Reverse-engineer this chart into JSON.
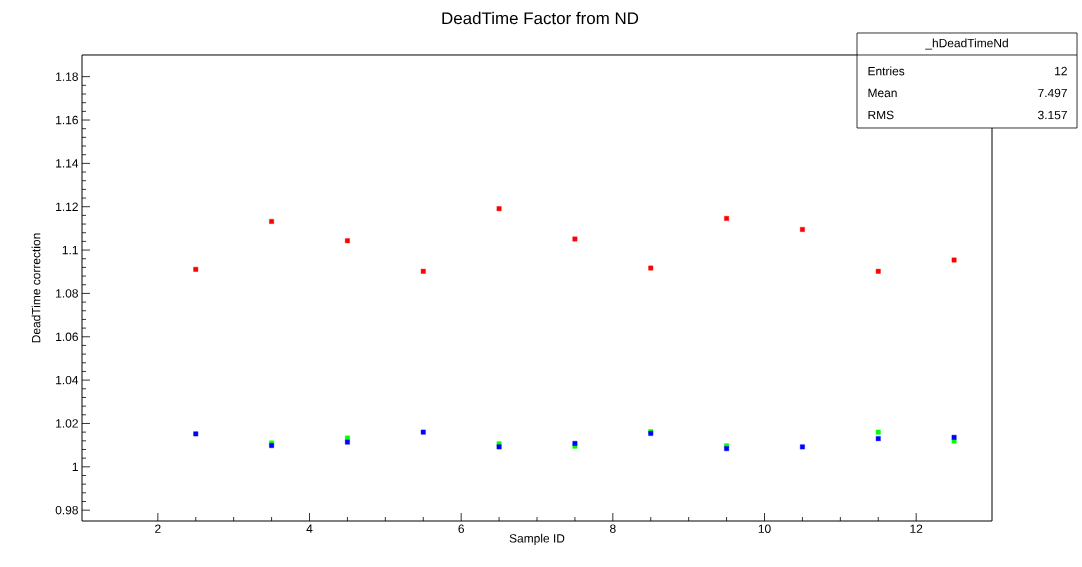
{
  "chart_data": {
    "type": "scatter",
    "title": "DeadTime Factor from ND",
    "xlabel": "Sample ID",
    "ylabel": "DeadTime correction",
    "x": [
      2.5,
      3.5,
      4.5,
      5.5,
      6.5,
      7.5,
      8.5,
      9.5,
      10.5,
      11.5,
      12.5
    ],
    "series": [
      {
        "color": "#ff0000",
        "values": [
          1.0911,
          1.1132,
          1.1043,
          1.0902,
          1.1191,
          1.1051,
          1.0917,
          1.1146,
          1.1095,
          1.0902,
          1.0954
        ]
      },
      {
        "color": "#00ff00",
        "values": [
          null,
          1.011,
          1.0133,
          null,
          1.0106,
          1.0095,
          1.0162,
          1.0097,
          null,
          1.016,
          1.0119
        ]
      },
      {
        "color": "#0000ff",
        "values": [
          1.0152,
          1.0098,
          1.0114,
          1.016,
          1.0092,
          1.0108,
          1.0154,
          1.0084,
          1.0092,
          1.013,
          1.0136
        ]
      }
    ],
    "xlim": [
      1,
      13
    ],
    "xticks": [
      2,
      4,
      6,
      8,
      10,
      12
    ],
    "ylim": [
      0.975,
      1.19
    ],
    "yticks": [
      0.98,
      1,
      1.02,
      1.04,
      1.06,
      1.08,
      1.1,
      1.12,
      1.14,
      1.16,
      1.18
    ],
    "marker": "square",
    "grid": false,
    "annotations": [
      "_hDeadTimeNd",
      "Entries",
      "12",
      "Mean",
      "7.497",
      "RMS",
      "3.157"
    ]
  }
}
